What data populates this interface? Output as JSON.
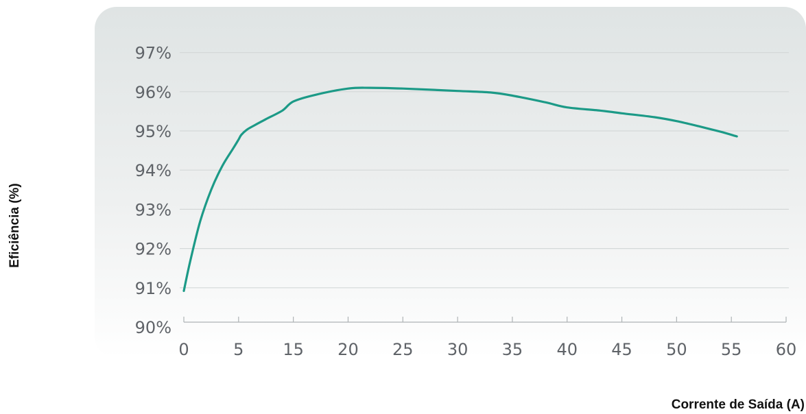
{
  "chart_data": {
    "type": "line",
    "xlabel": "Corrente de Saída (A)",
    "ylabel": "Eficiência (%)",
    "x_ticks": [
      "0",
      "5",
      "15",
      "20",
      "25",
      "30",
      "35",
      "40",
      "45",
      "50",
      "55",
      "60"
    ],
    "y_ticks": [
      "90%",
      "91%",
      "92%",
      "93%",
      "94%",
      "95%",
      "96%",
      "97%"
    ],
    "ylim": [
      90,
      97
    ],
    "grid": true,
    "series": [
      {
        "x": [
          0,
          0.6,
          1.5,
          2.5,
          3.5,
          4.5,
          5.0,
          5.5,
          6.5,
          8,
          10,
          13,
          15,
          17,
          20,
          22,
          25,
          30,
          33,
          35,
          38,
          40,
          43,
          45,
          48,
          50,
          52,
          54,
          55.5
        ],
        "y": [
          90.92,
          91.7,
          92.7,
          93.5,
          94.1,
          94.55,
          94.78,
          94.9,
          95.03,
          95.15,
          95.3,
          95.52,
          95.75,
          95.92,
          96.08,
          96.1,
          96.08,
          96.02,
          95.98,
          95.9,
          95.73,
          95.6,
          95.52,
          95.45,
          95.35,
          95.25,
          95.12,
          94.98,
          94.86
        ]
      }
    ],
    "colors": {
      "line": "#1c9a87",
      "grid": "#d4d8d8",
      "tick_text": "#5f6368"
    }
  }
}
